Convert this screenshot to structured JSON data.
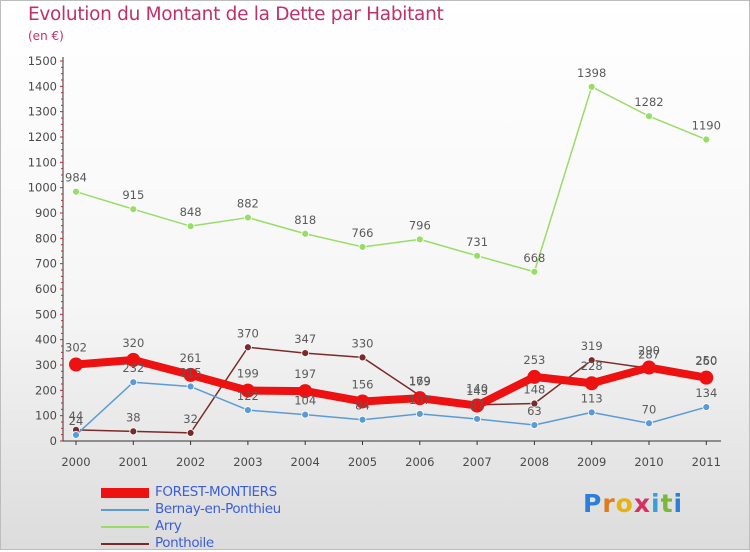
{
  "title": "Evolution du Montant de la Dette par Habitant",
  "subtitle": "(en €)",
  "brand": {
    "letters": [
      "P",
      "r",
      "o",
      "x",
      "i",
      "t",
      "i"
    ],
    "colors": [
      "#2b7fd6",
      "#e07b1c",
      "#e8b210",
      "#d83060",
      "#3a9fd8",
      "#79b83a",
      "#2b7fd6"
    ]
  },
  "chart_data": {
    "type": "line",
    "title": "Evolution du Montant de la Dette par Habitant",
    "subtitle": "(en €)",
    "xlabel": "",
    "ylabel": "",
    "categories": [
      "2000",
      "2001",
      "2002",
      "2003",
      "2004",
      "2005",
      "2006",
      "2007",
      "2008",
      "2009",
      "2010",
      "2011"
    ],
    "ylim": [
      0,
      1500
    ],
    "yticks": [
      "0",
      "100",
      "200",
      "300",
      "400",
      "500",
      "600",
      "700",
      "800",
      "900",
      "1000",
      "1100",
      "1200",
      "1300",
      "1400",
      "1500"
    ],
    "grid": false,
    "legend_position": "bottom-left",
    "series": [
      {
        "name": "Arry",
        "color": "#99dd66",
        "values": [
          984,
          915,
          848,
          882,
          818,
          766,
          796,
          731,
          668,
          1398,
          1282,
          1190
        ],
        "labels": [
          "984",
          "915",
          "848",
          "882",
          "818",
          "766",
          "796",
          "731",
          "668",
          "1398",
          "1282",
          "1190"
        ]
      },
      {
        "name": "Ponthoile",
        "color": "#7a2a2a",
        "values": [
          44,
          38,
          32,
          370,
          347,
          330,
          179,
          143,
          148,
          319,
          287,
          260
        ],
        "labels": [
          "44",
          "38",
          "32",
          "370",
          "347",
          "330",
          "179",
          "143",
          "148",
          "319",
          "287",
          "260"
        ]
      },
      {
        "name": "Bernay-en-Ponthieu",
        "color": "#5b9bd5",
        "values": [
          24,
          232,
          215,
          122,
          104,
          84,
          107,
          87,
          63,
          113,
          70,
          134
        ],
        "labels": [
          "24",
          "232",
          "215",
          "122",
          "104",
          "84",
          "107",
          "87",
          "63",
          "113",
          "70",
          "134"
        ]
      },
      {
        "name": "FOREST-MONTIERS",
        "color": "#ee1111",
        "values": [
          302,
          320,
          261,
          199,
          197,
          156,
          169,
          140,
          253,
          228,
          290,
          250
        ],
        "labels": [
          "302",
          "320",
          "261",
          "199",
          "197",
          "156",
          "169",
          "140",
          "253",
          "228",
          "290",
          "250"
        ]
      }
    ]
  },
  "legend": [
    {
      "name": "FOREST-MONTIERS",
      "color": "#ee1111",
      "thickness": 10
    },
    {
      "name": "Bernay-en-Ponthieu",
      "color": "#5b9bd5",
      "thickness": 2
    },
    {
      "name": "Arry",
      "color": "#99dd66",
      "thickness": 2
    },
    {
      "name": "Ponthoile",
      "color": "#7a2a2a",
      "thickness": 2
    }
  ]
}
